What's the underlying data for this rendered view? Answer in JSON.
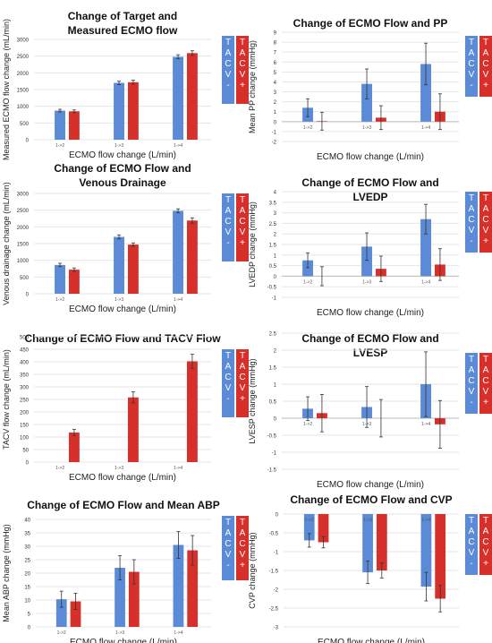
{
  "colors": {
    "blue": "#5b8bd6",
    "red": "#d7302a",
    "grid": "#e6e6e6",
    "err": "#333333"
  },
  "legend": {
    "left": [
      "T",
      "A",
      "C",
      "V",
      "-"
    ],
    "right": [
      "T",
      "A",
      "C",
      "V",
      "+"
    ]
  },
  "chart_data": [
    {
      "id": "p1",
      "type": "bar",
      "title": [
        "Change of Target and",
        "Measured ECMO flow"
      ],
      "xlabel": "ECMO flow change (L/min)",
      "ylabel": "Measured ECMO flow change (mL/min)",
      "categories": [
        "1->2",
        "1->3",
        "1->4"
      ],
      "yticks": [
        "0",
        "500",
        "1000",
        "1500",
        "2000",
        "2500",
        "3000"
      ],
      "ylim": [
        0,
        3000
      ],
      "series": [
        {
          "values": [
            870,
            1700,
            2480
          ],
          "err": [
            40,
            50,
            60
          ],
          "color": "blue"
        },
        {
          "values": [
            850,
            1720,
            2590
          ],
          "err": [
            40,
            60,
            70
          ],
          "color": "red"
        }
      ]
    },
    {
      "id": "p2",
      "type": "bar",
      "title": [
        "Change of ECMO Flow and PP"
      ],
      "xlabel": "ECMO flow change (L/min)",
      "ylabel": "Mean PP change (mmHg)",
      "categories": [
        "1->2",
        "1->3",
        "1->4"
      ],
      "yticks": [
        "-2",
        "-1",
        "0",
        "1",
        "2",
        "3",
        "4",
        "5",
        "6",
        "7",
        "8",
        "9"
      ],
      "ylim": [
        -2,
        9
      ],
      "series": [
        {
          "values": [
            1.4,
            3.8,
            5.8
          ],
          "err": [
            0.9,
            1.5,
            2.1
          ],
          "color": "blue"
        },
        {
          "values": [
            0.05,
            0.4,
            1.0
          ],
          "err": [
            0.9,
            1.2,
            1.8
          ],
          "color": "red"
        }
      ]
    },
    {
      "id": "p3",
      "type": "bar",
      "title": [
        "Change of ECMO Flow and",
        "Venous Drainage"
      ],
      "xlabel": "ECMO flow change (L/min)",
      "ylabel": "Venous drainage change (mL/min)",
      "categories": [
        "1->2",
        "1->3",
        "1->4"
      ],
      "yticks": [
        "0",
        "500",
        "1000",
        "1500",
        "2000",
        "2500",
        "3000"
      ],
      "ylim": [
        0,
        3000
      ],
      "series": [
        {
          "values": [
            860,
            1700,
            2480
          ],
          "err": [
            50,
            60,
            60
          ],
          "color": "blue"
        },
        {
          "values": [
            720,
            1470,
            2190
          ],
          "err": [
            50,
            50,
            80
          ],
          "color": "red"
        }
      ]
    },
    {
      "id": "p4",
      "type": "bar",
      "title": [
        "Change of ECMO Flow and",
        "LVEDP"
      ],
      "xlabel": "ECMO flow change (L/min)",
      "ylabel": "LVEDP change (mmHg)",
      "categories": [
        "1->2",
        "1->3",
        "1->4"
      ],
      "yticks": [
        "-1",
        "-0.5",
        "0",
        "0.5",
        "1",
        "1.5",
        "2",
        "2.5",
        "3",
        "3.5",
        "4"
      ],
      "ylim": [
        -1,
        4
      ],
      "series": [
        {
          "values": [
            0.75,
            1.4,
            2.7
          ],
          "err": [
            0.35,
            0.65,
            0.7
          ],
          "color": "blue"
        },
        {
          "values": [
            0.0,
            0.35,
            0.55
          ],
          "err": [
            0.45,
            0.6,
            0.75
          ],
          "color": "red"
        }
      ]
    },
    {
      "id": "p5",
      "type": "bar",
      "title": [
        "Change of ECMO Flow and TACV Flow"
      ],
      "xlabel": "ECMO flow change (L/min)",
      "ylabel": "TACV flow change (mL/min)",
      "categories": [
        "1->2",
        "1->3",
        "1->4"
      ],
      "yticks": [
        "0",
        "50",
        "100",
        "150",
        "200",
        "250",
        "300",
        "350",
        "400",
        "450",
        "500"
      ],
      "ylim": [
        0,
        500
      ],
      "series": [
        {
          "values": [
            0,
            0,
            0
          ],
          "err": [
            0,
            0,
            0
          ],
          "color": "blue"
        },
        {
          "values": [
            118,
            258,
            402
          ],
          "err": [
            12,
            22,
            28
          ],
          "color": "red"
        }
      ]
    },
    {
      "id": "p6",
      "type": "bar",
      "title": [
        "Change of ECMO Flow and",
        "LVESP"
      ],
      "xlabel": "ECMO flow change (L/min)",
      "ylabel": "LVESP change (mmHg)",
      "categories": [
        "1->2",
        "1->3",
        "1->4"
      ],
      "yticks": [
        "-1.5",
        "-1",
        "-0.5",
        "0",
        "0.5",
        "1",
        "1.5",
        "2",
        "2.5"
      ],
      "ylim": [
        -1.5,
        2.5
      ],
      "series": [
        {
          "values": [
            0.28,
            0.33,
            1.0
          ],
          "err": [
            0.35,
            0.6,
            0.95
          ],
          "color": "blue"
        },
        {
          "values": [
            0.15,
            0.0,
            -0.18
          ],
          "err": [
            0.55,
            0.55,
            0.7
          ],
          "color": "red"
        }
      ]
    },
    {
      "id": "p7",
      "type": "bar",
      "title": [
        "Change of ECMO Flow and Mean ABP"
      ],
      "xlabel": "ECMO flow change (L/min)",
      "ylabel": "Mean ABP change (mmHg)",
      "categories": [
        "1->2",
        "1->3",
        "1->4"
      ],
      "yticks": [
        "0",
        "5",
        "10",
        "15",
        "20",
        "25",
        "30",
        "35",
        "40"
      ],
      "ylim": [
        0,
        40
      ],
      "series": [
        {
          "values": [
            10.3,
            22,
            30.5
          ],
          "err": [
            3,
            4.5,
            5
          ],
          "color": "blue"
        },
        {
          "values": [
            9.5,
            20.5,
            28.5
          ],
          "err": [
            3,
            4.5,
            5.5
          ],
          "color": "red"
        }
      ]
    },
    {
      "id": "p8",
      "type": "bar",
      "title": [
        "Change of ECMO Flow and CVP"
      ],
      "xlabel": "ECMO flow change (L/min)",
      "ylabel": "CVP change (mmHg)",
      "categories": [
        "1->2",
        "1->3",
        "1->4"
      ],
      "yticks": [
        "-3",
        "-2.5",
        "-2",
        "-1.5",
        "-1",
        "-0.5",
        "0"
      ],
      "ylim": [
        -3,
        0
      ],
      "series": [
        {
          "values": [
            -0.7,
            -1.55,
            -1.93
          ],
          "err": [
            0.18,
            0.3,
            0.38
          ],
          "color": "blue"
        },
        {
          "values": [
            -0.75,
            -1.5,
            -2.25
          ],
          "err": [
            0.15,
            0.2,
            0.35
          ],
          "color": "red"
        }
      ]
    }
  ]
}
